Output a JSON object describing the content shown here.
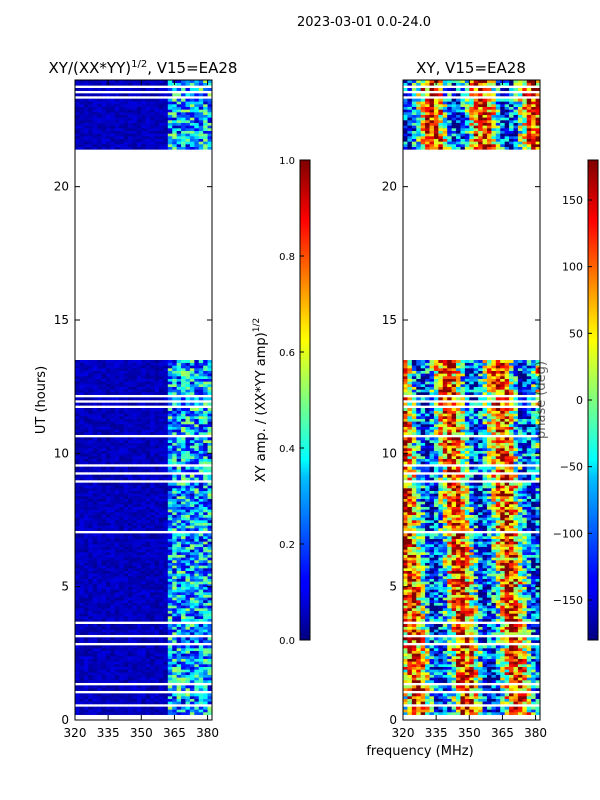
{
  "suptitle": "2023-03-01 0.0-24.0",
  "figure_xlabel": "frequency (MHz)",
  "chart_data": [
    {
      "type": "heatmap",
      "id": "amp",
      "title_main": "XY/(XX*YY)",
      "title_exp": "1/2",
      "title_tail": ", V15=EA28",
      "xlabel": "frequency (MHz)",
      "ylabel": "UT (hours)",
      "xlim": [
        320,
        382
      ],
      "ylim": [
        0,
        24
      ],
      "xticks": [
        320,
        335,
        350,
        365,
        380
      ],
      "yticks": [
        0,
        5,
        10,
        15,
        20
      ],
      "colormap": "jet",
      "colorbar": {
        "label_main": "XY amp. / (XX*YY amp)",
        "label_exp": "1/2",
        "range": [
          0.0,
          1.0
        ],
        "ticks": [
          "0.0",
          "0.2",
          "0.4",
          "0.6",
          "0.8",
          "1.0"
        ],
        "tick_values": [
          0.0,
          0.2,
          0.4,
          0.6,
          0.8,
          1.0
        ]
      },
      "data_coverage_hours": [
        [
          0.0,
          13.5
        ],
        [
          21.4,
          24.0
        ]
      ],
      "gap_hours": [
        [
          13.5,
          21.4
        ]
      ],
      "description_bands_mhz": {
        "low_region": [
          320,
          362
        ],
        "high_region": [
          362,
          382
        ]
      }
    },
    {
      "type": "heatmap",
      "id": "phase",
      "title": "XY, V15=EA28",
      "xlabel": "frequency (MHz)",
      "ylabel": "phase (deg)",
      "xlim": [
        320,
        382
      ],
      "ylim": [
        0,
        24
      ],
      "xticks": [
        320,
        335,
        350,
        365,
        380
      ],
      "yticks": [
        0,
        5,
        10,
        15,
        20
      ],
      "colormap": "jet",
      "colorbar": {
        "label": "phase (deg)",
        "range": [
          -180,
          180
        ],
        "ticks": [
          "150",
          "100",
          "50",
          "0",
          "−50",
          "−100",
          "−150"
        ],
        "tick_values": [
          150,
          100,
          50,
          0,
          -50,
          -100,
          -150
        ]
      },
      "data_coverage_hours": [
        [
          0.0,
          13.5
        ],
        [
          21.4,
          24.0
        ]
      ],
      "gap_hours": [
        [
          13.5,
          21.4
        ]
      ]
    }
  ]
}
